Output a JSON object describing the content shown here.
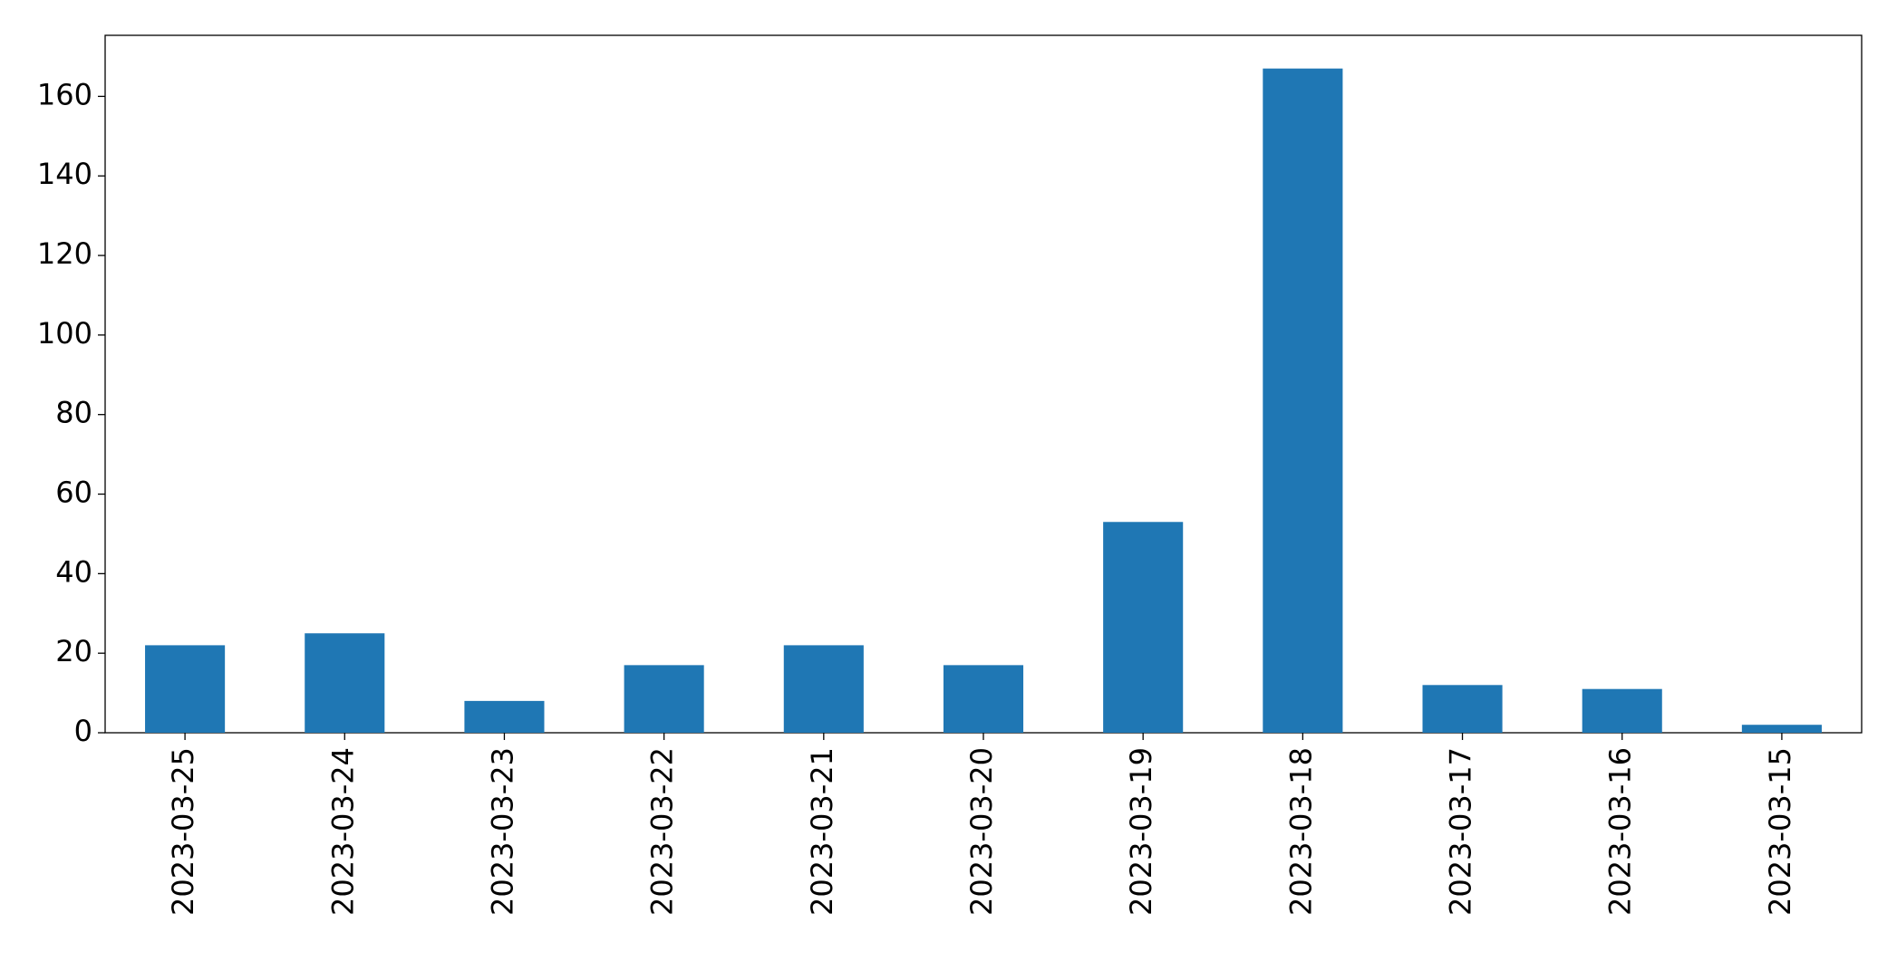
{
  "chart_data": {
    "type": "bar",
    "categories": [
      "2023-03-25",
      "2023-03-24",
      "2023-03-23",
      "2023-03-22",
      "2023-03-21",
      "2023-03-20",
      "2023-03-19",
      "2023-03-18",
      "2023-03-17",
      "2023-03-16",
      "2023-03-15"
    ],
    "values": [
      22,
      25,
      8,
      17,
      22,
      17,
      53,
      167,
      12,
      11,
      2
    ],
    "color": "#1f77b4",
    "ylim": [
      0,
      175.35
    ],
    "yticks": [
      0,
      20,
      40,
      60,
      80,
      100,
      120,
      140,
      160
    ],
    "grid": false
  }
}
